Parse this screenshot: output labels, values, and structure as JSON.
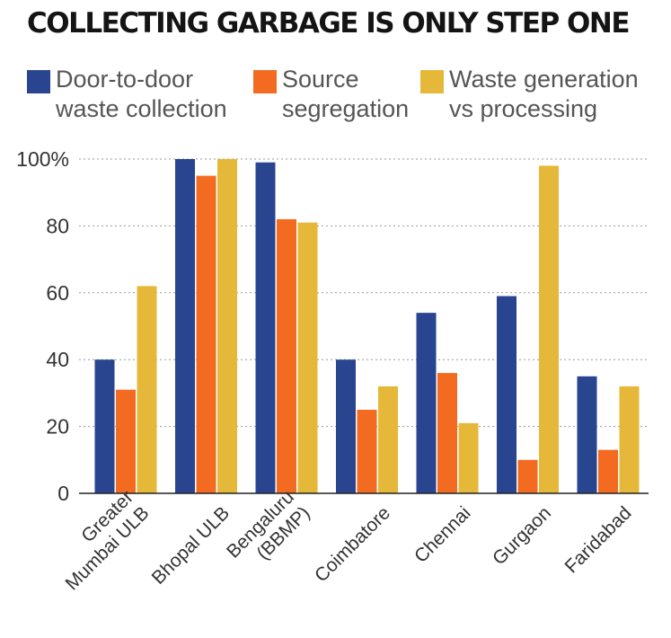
{
  "chart_data": {
    "type": "bar",
    "title": "COLLECTING GARBAGE IS ONLY STEP ONE",
    "categories": [
      [
        "Greater",
        "Mumbai ULB"
      ],
      [
        "Bhopal ULB"
      ],
      [
        "Bengaluru",
        "(BBMP)"
      ],
      [
        "Coimbatore"
      ],
      [
        "Chennai"
      ],
      [
        "Gurgaon"
      ],
      [
        "Faridabad"
      ]
    ],
    "series": [
      {
        "name": [
          "Door-to-door",
          "waste collection"
        ],
        "color": "#2a4590",
        "values": [
          40,
          100,
          99,
          40,
          54,
          59,
          35
        ]
      },
      {
        "name": [
          "Source",
          "segregation"
        ],
        "color": "#f26b21",
        "values": [
          31,
          95,
          82,
          25,
          36,
          10,
          13
        ]
      },
      {
        "name": [
          "Waste generation",
          "vs processing"
        ],
        "color": "#e6b83a",
        "values": [
          62,
          100,
          81,
          32,
          21,
          98,
          32
        ]
      }
    ],
    "y_ticks": [
      {
        "value": 0,
        "label": "0"
      },
      {
        "value": 20,
        "label": "20"
      },
      {
        "value": 40,
        "label": "40"
      },
      {
        "value": 60,
        "label": "60"
      },
      {
        "value": 80,
        "label": "80"
      },
      {
        "value": 100,
        "label": "100%"
      }
    ],
    "ylim": [
      0,
      100
    ],
    "grid": "horizontal-dotted",
    "legend_position": "top"
  }
}
